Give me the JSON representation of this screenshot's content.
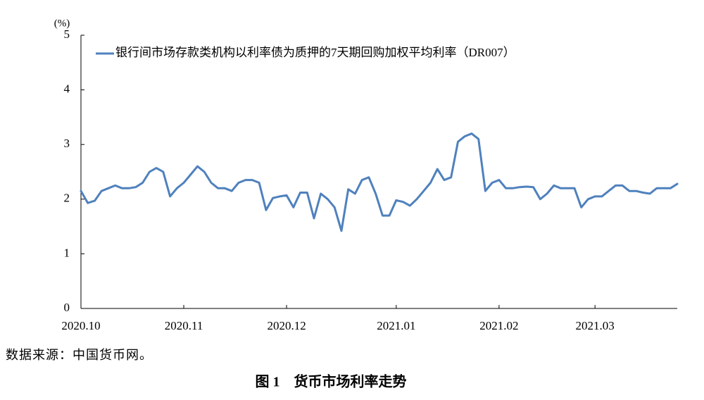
{
  "chart_data": {
    "type": "line",
    "y_unit_label": "(%)",
    "categories": [
      "2020.10",
      null,
      null,
      null,
      null,
      null,
      null,
      null,
      null,
      null,
      null,
      null,
      null,
      null,
      null,
      "2020.11",
      null,
      null,
      null,
      null,
      null,
      null,
      null,
      null,
      null,
      null,
      null,
      null,
      null,
      null,
      "2020.12",
      null,
      null,
      null,
      null,
      null,
      null,
      null,
      null,
      null,
      null,
      null,
      null,
      null,
      null,
      null,
      "2021.01",
      null,
      null,
      null,
      null,
      null,
      null,
      null,
      null,
      null,
      null,
      null,
      null,
      null,
      null,
      "2021.02",
      null,
      null,
      null,
      null,
      null,
      null,
      null,
      null,
      null,
      null,
      null,
      null,
      null,
      "2021.03",
      null,
      null,
      null,
      null,
      null,
      null,
      null,
      null,
      null,
      null,
      null,
      null
    ],
    "series": [
      {
        "name": "银行间市场存款类机构以利率债为质押的7天期回购加权平均利率（DR007）",
        "color": "#4f81bd",
        "values": [
          2.15,
          1.93,
          1.97,
          2.15,
          2.2,
          2.25,
          2.2,
          2.2,
          2.22,
          2.3,
          2.5,
          2.57,
          2.5,
          2.05,
          2.2,
          2.3,
          2.45,
          2.6,
          2.5,
          2.3,
          2.2,
          2.2,
          2.15,
          2.3,
          2.35,
          2.35,
          2.3,
          1.8,
          2.02,
          2.05,
          2.07,
          1.85,
          2.12,
          2.12,
          1.65,
          2.1,
          2.0,
          1.85,
          1.42,
          2.18,
          2.1,
          2.35,
          2.4,
          2.1,
          1.7,
          1.7,
          1.98,
          1.95,
          1.88,
          2.0,
          2.15,
          2.3,
          2.55,
          2.35,
          2.4,
          3.05,
          3.15,
          3.2,
          3.1,
          2.15,
          2.3,
          2.35,
          2.2,
          2.2,
          2.22,
          2.23,
          2.22,
          2.0,
          2.1,
          2.25,
          2.2,
          2.2,
          2.2,
          1.85,
          2.0,
          2.05,
          2.05,
          2.15,
          2.25,
          2.25,
          2.15,
          2.15,
          2.12,
          2.1,
          2.2,
          2.2,
          2.2,
          2.28
        ]
      }
    ],
    "ylim": [
      0,
      5
    ],
    "yticks": [
      0,
      1,
      2,
      3,
      4,
      5
    ],
    "grid": false,
    "legend": "top"
  },
  "source": "数据来源：中国货币网。",
  "caption": "图 1　货币市场利率走势"
}
